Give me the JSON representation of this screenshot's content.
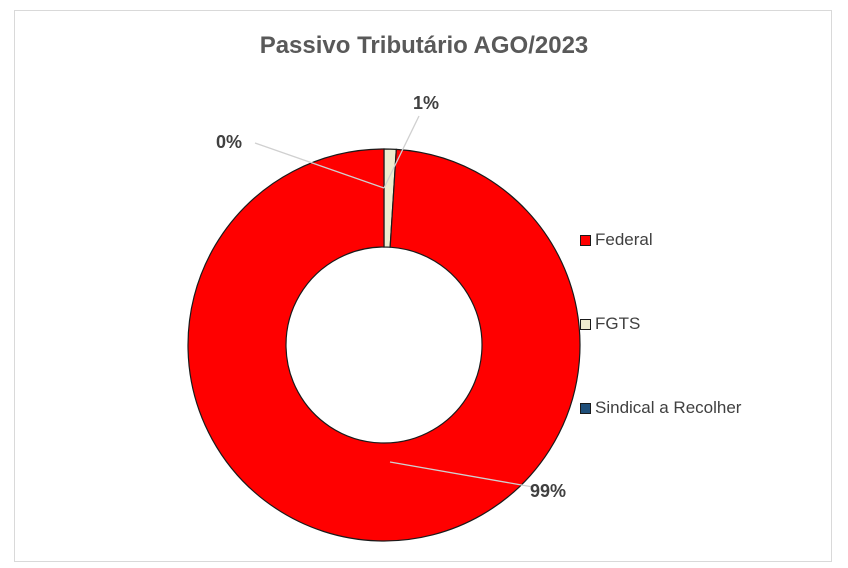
{
  "chart_data": {
    "type": "pie",
    "variant": "doughnut",
    "title": "Passivo Tributário AGO/2023",
    "legend_position": "right",
    "slices": [
      {
        "name": "Federal",
        "value": 99,
        "label": "99%",
        "color": "#ff0000"
      },
      {
        "name": "FGTS",
        "value": 1,
        "label": "1%",
        "color": "#eeeccf"
      },
      {
        "name": "Sindical a Recolher",
        "value": 0,
        "label": "0%",
        "color": "#1f4e79"
      }
    ]
  }
}
